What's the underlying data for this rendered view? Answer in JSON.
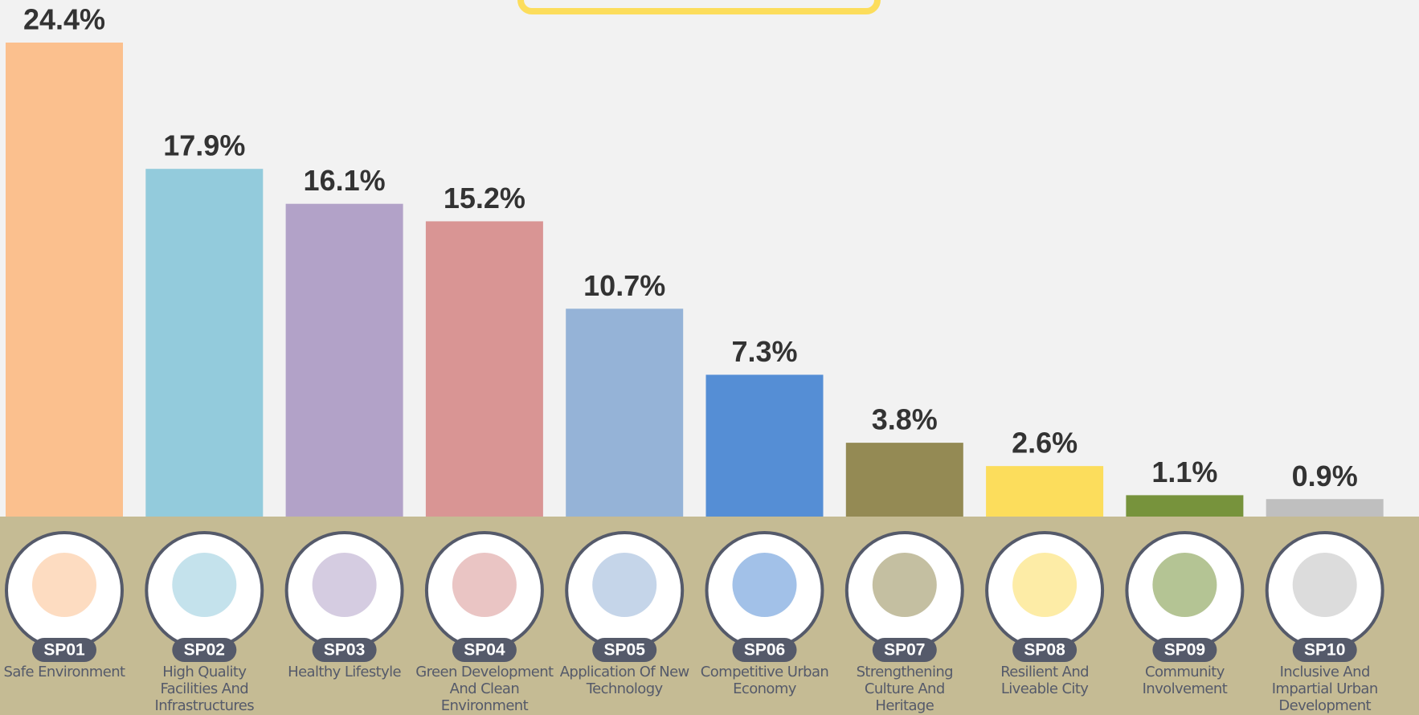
{
  "chart_data": {
    "type": "bar",
    "categories": [
      "Safe Environment",
      "High Quality Facilities And Infrastructures",
      "Healthy Lifestyle",
      "Green Development And Clean Environment",
      "Application Of New Technology",
      "Competitive Urban Economy",
      "Strengthening Culture And Heritage",
      "Resilient And Liveable City",
      "Community Involvement",
      "Inclusive And Impartial Urban Development"
    ],
    "codes": [
      "SP01",
      "SP02",
      "SP03",
      "SP04",
      "SP05",
      "SP06",
      "SP07",
      "SP08",
      "SP09",
      "SP10"
    ],
    "values": [
      24.4,
      17.9,
      16.1,
      15.2,
      10.7,
      7.3,
      3.8,
      2.6,
      1.1,
      0.9
    ],
    "value_labels": [
      "24.4%",
      "17.9%",
      "16.1%",
      "15.2%",
      "10.7%",
      "7.3%",
      "3.8%",
      "2.6%",
      "1.1%",
      "0.9%"
    ],
    "colors": [
      "#fbc08e",
      "#93cbdc",
      "#b2a2c8",
      "#d99594",
      "#95b3d7",
      "#558ed5",
      "#948a54",
      "#fcdd5c",
      "#77933c",
      "#bfbfbf"
    ]
  }
}
